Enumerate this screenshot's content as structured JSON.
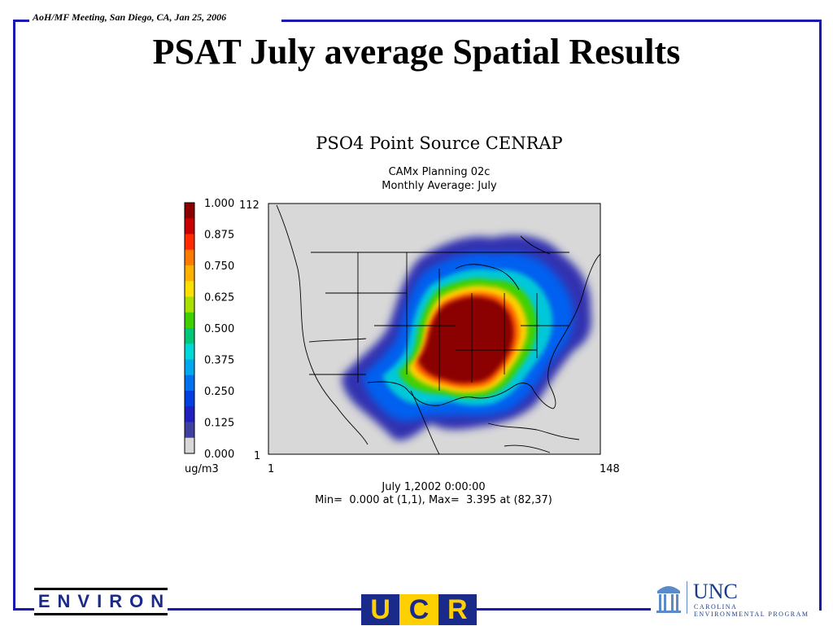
{
  "header": {
    "meeting": "AoH/MF Meeting, San Diego, CA,  Jan 25, 2006",
    "title": "PSAT July average Spatial Results"
  },
  "figure": {
    "title": "PSO4 Point Source CENRAP",
    "subtitle_1": "CAMx Planning 02c",
    "subtitle_2": "Monthly Average: July",
    "colorbar": {
      "labels": [
        "1.000",
        "0.875",
        "0.750",
        "0.625",
        "0.500",
        "0.375",
        "0.250",
        "0.125",
        "0.000"
      ],
      "unit": "ug/m3",
      "colors": [
        "#8b0000",
        "#c80000",
        "#ff2a00",
        "#ff7a00",
        "#ffb000",
        "#ffe000",
        "#a8e000",
        "#40d000",
        "#00c878",
        "#00d8d8",
        "#00a8f0",
        "#0070f0",
        "#0040e0",
        "#2020c0",
        "#4040a0",
        "#d8d8d8"
      ]
    },
    "axes": {
      "y_top": "112",
      "y_bottom": "1",
      "x_left": "1",
      "x_right": "148"
    },
    "timestamp": "July 1,2002 0:00:00",
    "minmax": "Min=  0.000 at (1,1), Max=  3.395 at (82,37)"
  },
  "logos": {
    "environ": "ENVIRON",
    "ucr": [
      "U",
      "C",
      "R"
    ],
    "unc": "UNC",
    "unc_line1": "CAROLINA",
    "unc_line2": "ENVIRONMENTAL PROGRAM"
  },
  "colors": {
    "frame": "#1a1ab0",
    "map_background": "#d8d8d8"
  }
}
